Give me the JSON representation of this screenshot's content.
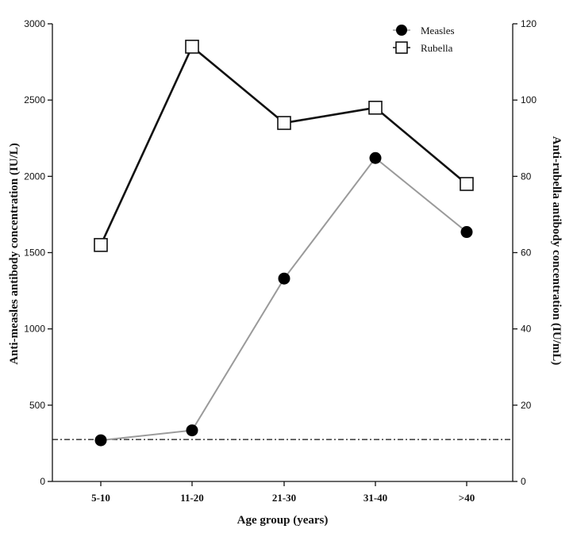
{
  "chart_data": {
    "type": "line",
    "categories": [
      "5-10",
      "11-20",
      "21-30",
      "31-40",
      ">40"
    ],
    "xlabel": "Age group (years)",
    "ylabel_left": "Anti-measles antibody concentration (IU/L)",
    "ylabel_right": "Anti-rubella antibody concentration (IU/mL)",
    "ylim_left": [
      0,
      3000
    ],
    "ylim_right": [
      0,
      120
    ],
    "yticks_left": [
      "0",
      "500",
      "1000",
      "1500",
      "2000",
      "2500",
      "3000"
    ],
    "yticks_right": [
      "0",
      "20",
      "40",
      "60",
      "80",
      "100",
      "120"
    ],
    "threshold_left": 275,
    "grid": false,
    "legend_position": "top-right",
    "series": [
      {
        "name": "Measles",
        "axis": "left",
        "marker": "filled-circle",
        "color": "#9a9a9a",
        "values": [
          270,
          335,
          1330,
          2120,
          1635
        ]
      },
      {
        "name": "Rubella",
        "axis": "right",
        "marker": "open-square",
        "color": "#111111",
        "values": [
          62,
          114,
          94,
          98,
          78
        ]
      }
    ]
  }
}
